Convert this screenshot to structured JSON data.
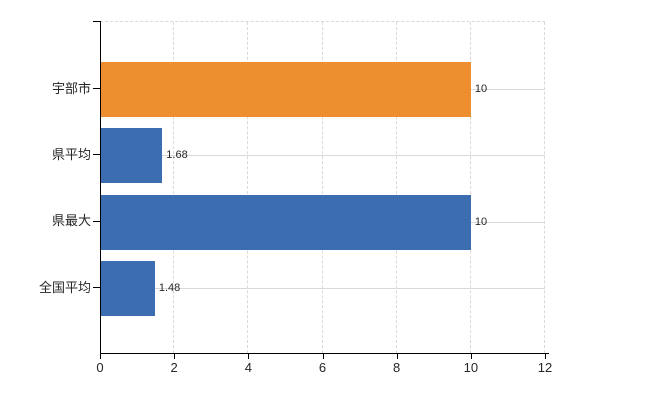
{
  "chart_data": {
    "type": "bar",
    "orientation": "horizontal",
    "title": "",
    "xlabel": "",
    "ylabel": "",
    "categories": [
      "宇部市",
      "県平均",
      "県最大",
      "全国平均"
    ],
    "values": [
      10,
      1.68,
      10,
      1.48
    ],
    "value_labels": [
      "10",
      "1.68",
      "10",
      "1.48"
    ],
    "bar_colors": [
      "#ED8F2F",
      "#3C6DB0",
      "#3C6DB0",
      "#3C6DB0"
    ],
    "xlim": [
      0,
      12
    ],
    "xticks": [
      0,
      2,
      4,
      6,
      8,
      10,
      12
    ],
    "grid": true,
    "legend": false,
    "colors": {
      "grid": "#D9D9D9",
      "axis": "#000000",
      "text": "#262626",
      "background": "#FFFFFF"
    }
  }
}
